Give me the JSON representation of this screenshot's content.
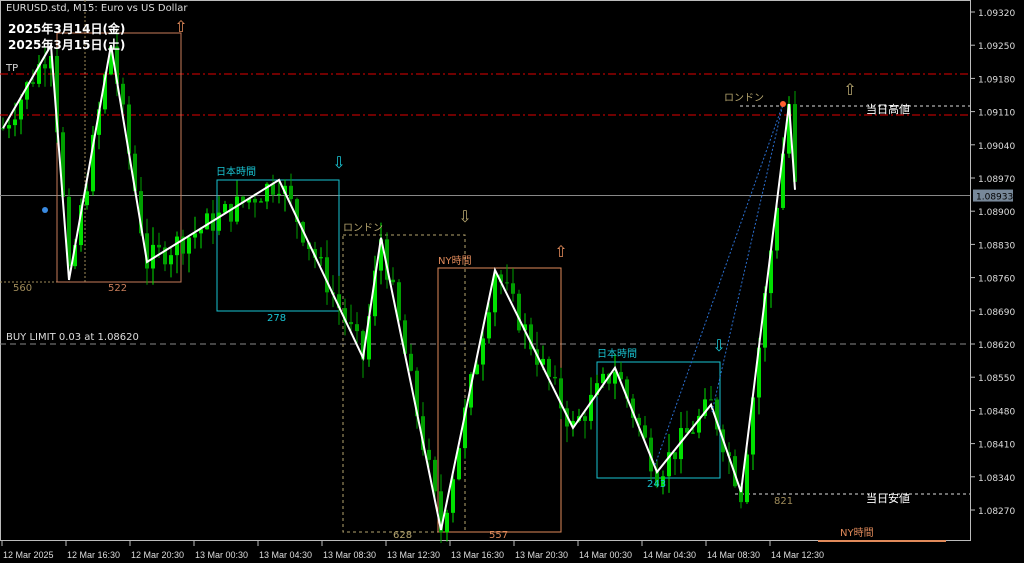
{
  "window": {
    "title": "EURUSD.std, M15:  Euro vs US Dollar"
  },
  "overlay": {
    "date1": "2025年3月14日(金)",
    "date2": "2025年3月15日(土)",
    "tp": "TP"
  },
  "price_axis": {
    "ticks": [
      "1.09320",
      "1.09250",
      "1.09180",
      "1.09110",
      "1.09040",
      "1.08970",
      "1.08900",
      "1.08830",
      "1.08760",
      "1.08690",
      "1.08620",
      "1.08550",
      "1.08480",
      "1.08410",
      "1.08340",
      "1.08270"
    ],
    "current_price": "1.08933"
  },
  "time_axis": {
    "ticks": [
      "12 Mar 2025",
      "12 Mar 16:30",
      "12 Mar 20:30",
      "13 Mar 00:30",
      "13 Mar 04:30",
      "13 Mar 08:30",
      "13 Mar 12:30",
      "13 Mar 16:30",
      "13 Mar 20:30",
      "14 Mar 00:30",
      "14 Mar 04:30",
      "14 Mar 08:30",
      "14 Mar 12:30"
    ]
  },
  "lines": {
    "buy_limit": "BUY LIMIT 0.03 at 1.08620",
    "day_high": "当日高値",
    "day_low": "当日安値"
  },
  "sessions": [
    {
      "name": "",
      "range": "522",
      "color": "#c87d5a"
    },
    {
      "name": "日本時間",
      "range": "278",
      "color": "#19c3d2"
    },
    {
      "name": "ロンドン",
      "range": "628",
      "color": "#b4a46e"
    },
    {
      "name": "NY時間",
      "range": "557",
      "color": "#e08a5a"
    },
    {
      "name": "日本時間",
      "range": "243",
      "color": "#19c3d2"
    }
  ],
  "other_labels": {
    "left_range": "560",
    "last_range": "821",
    "london_now": "ロンドン",
    "ny_now": "NY時間"
  },
  "colors": {
    "bull": "#00e000",
    "bear": "#00a000",
    "zigzag": "#ffffff",
    "resistance": "#e00000"
  },
  "zigzag": [
    {
      "bar": 0,
      "price": 1.09075
    },
    {
      "bar": 8,
      "price": 1.0925
    },
    {
      "bar": 11,
      "price": 1.08755
    },
    {
      "bar": 18,
      "price": 1.0925
    },
    {
      "bar": 24,
      "price": 1.08793
    },
    {
      "bar": 46,
      "price": 1.08966
    },
    {
      "bar": 60,
      "price": 1.08591
    },
    {
      "bar": 63,
      "price": 1.08844
    },
    {
      "bar": 73,
      "price": 1.08228
    },
    {
      "bar": 82,
      "price": 1.08776
    },
    {
      "bar": 95,
      "price": 1.08443
    },
    {
      "bar": 102,
      "price": 1.0857
    },
    {
      "bar": 109,
      "price": 1.0835
    },
    {
      "bar": 118,
      "price": 1.08492
    },
    {
      "bar": 123,
      "price": 1.08308
    },
    {
      "bar": 131,
      "price": 1.09126
    },
    {
      "bar": 132,
      "price": 1.08945
    }
  ]
}
